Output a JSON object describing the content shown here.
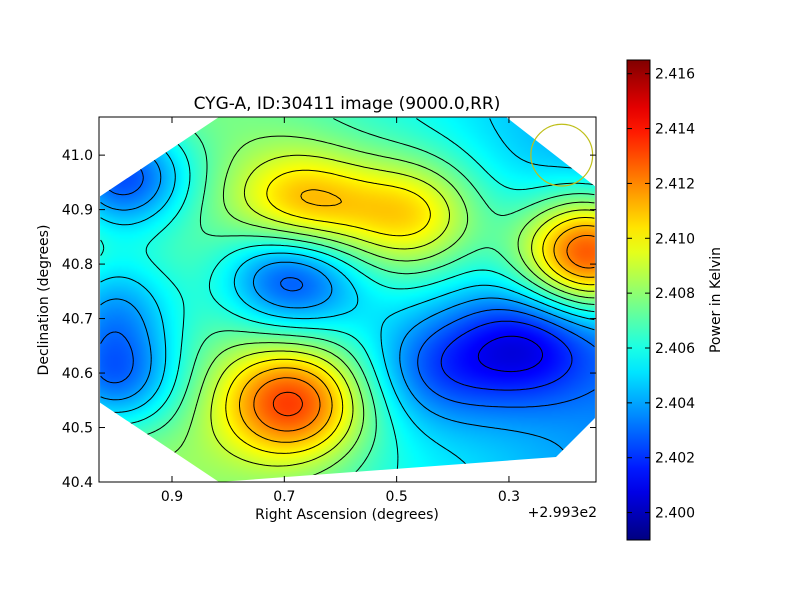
{
  "chart_data": {
    "type": "heatmap",
    "title": "CYG-A, ID:30411 image (9000.0,RR)",
    "xlabel": "Right Ascension (degrees)",
    "ylabel": "Declination (degrees)",
    "x_offset_label": "+2.993e2",
    "xlim": [
      1.03,
      0.145
    ],
    "ylim": [
      40.4,
      41.07
    ],
    "xticks": [
      0.9,
      0.7,
      0.5,
      0.3
    ],
    "xtick_labels": [
      "0.9",
      "0.7",
      "0.5",
      "0.3"
    ],
    "yticks": [
      40.4,
      40.5,
      40.6,
      40.7,
      40.8,
      40.9,
      41.0
    ],
    "ytick_labels": [
      "40.4",
      "40.5",
      "40.6",
      "40.7",
      "40.8",
      "40.9",
      "41.0"
    ],
    "colorbar": {
      "label": "Power in Kelvin",
      "min": 2.399,
      "max": 2.4165,
      "ticks": [
        2.4,
        2.402,
        2.404,
        2.406,
        2.408,
        2.41,
        2.412,
        2.414,
        2.416
      ],
      "tick_labels": [
        "2.400",
        "2.402",
        "2.404",
        "2.406",
        "2.408",
        "2.410",
        "2.412",
        "2.414",
        "2.416"
      ],
      "colormap": "jet"
    },
    "coverage": "rotated square footprint with 4 vertices",
    "beam_marker": {
      "ra": 0.206,
      "dec": 41.0,
      "radius_deg": 0.055,
      "color": "#bfbf1a"
    },
    "features": [
      {
        "kind": "max",
        "ra": 0.685,
        "dec": 40.545,
        "value": 2.4135
      },
      {
        "kind": "max",
        "ra": 0.665,
        "dec": 40.9,
        "value": 2.412
      },
      {
        "kind": "max",
        "ra": 0.47,
        "dec": 40.89,
        "value": 2.4115
      },
      {
        "kind": "max",
        "ra": 0.155,
        "dec": 40.82,
        "value": 2.4165
      },
      {
        "kind": "min",
        "ra": 0.995,
        "dec": 40.96,
        "value": 2.3995
      },
      {
        "kind": "min",
        "ra": 0.69,
        "dec": 40.785,
        "value": 2.4005
      },
      {
        "kind": "min",
        "ra": 0.27,
        "dec": 40.65,
        "value": 2.4025
      },
      {
        "kind": "min",
        "ra": 0.43,
        "dec": 40.61,
        "value": 2.4035
      },
      {
        "kind": "min",
        "ra": 1.01,
        "dec": 40.59,
        "value": 2.4005
      },
      {
        "kind": "min",
        "ra": 1.01,
        "dec": 40.73,
        "value": 2.402
      }
    ]
  }
}
